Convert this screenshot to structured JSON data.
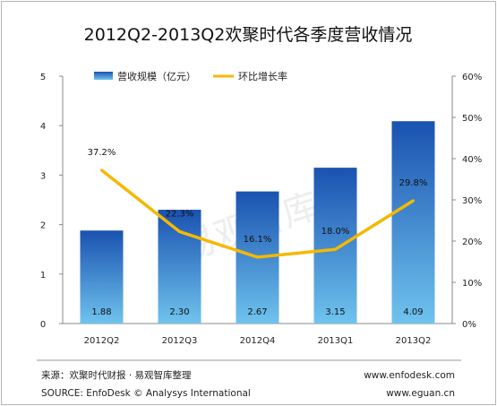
{
  "chart_data": {
    "type": "bar",
    "title": "2012Q2-2013Q2欢聚时代各季度营收情况",
    "categories": [
      "2012Q2",
      "2012Q3",
      "2012Q4",
      "2013Q1",
      "2013Q2"
    ],
    "series": [
      {
        "name": "营收规模（亿元）",
        "type": "bar",
        "axis": "left",
        "values": [
          1.88,
          2.3,
          2.67,
          3.15,
          4.09
        ],
        "labels": [
          "1.88",
          "2.30",
          "2.67",
          "3.15",
          "4.09"
        ],
        "color": "#2f6fc8"
      },
      {
        "name": "环比增长率",
        "type": "line",
        "axis": "right",
        "values": [
          37.2,
          22.3,
          16.1,
          18.0,
          29.8
        ],
        "labels": [
          "37.2%",
          "22.3%",
          "16.1%",
          "18.0%",
          "29.8%"
        ],
        "color": "#f5b800"
      }
    ],
    "ylim": [
      0,
      5
    ],
    "yticks": [
      "0",
      "1",
      "2",
      "3",
      "4",
      "5"
    ],
    "y2lim": [
      0,
      60
    ],
    "y2ticks": [
      "0%",
      "10%",
      "20%",
      "30%",
      "40%",
      "50%",
      "60%"
    ],
    "grid": false,
    "legend_position": "top"
  },
  "watermark": "易观智库",
  "footer": {
    "source_cn": "来源：欢聚时代财报 · 易观智库整理",
    "source_en": "SOURCE: EnfoDesk © Analysys International",
    "url1": "www.enfodesk.com",
    "url2": "www.eguan.cn"
  }
}
